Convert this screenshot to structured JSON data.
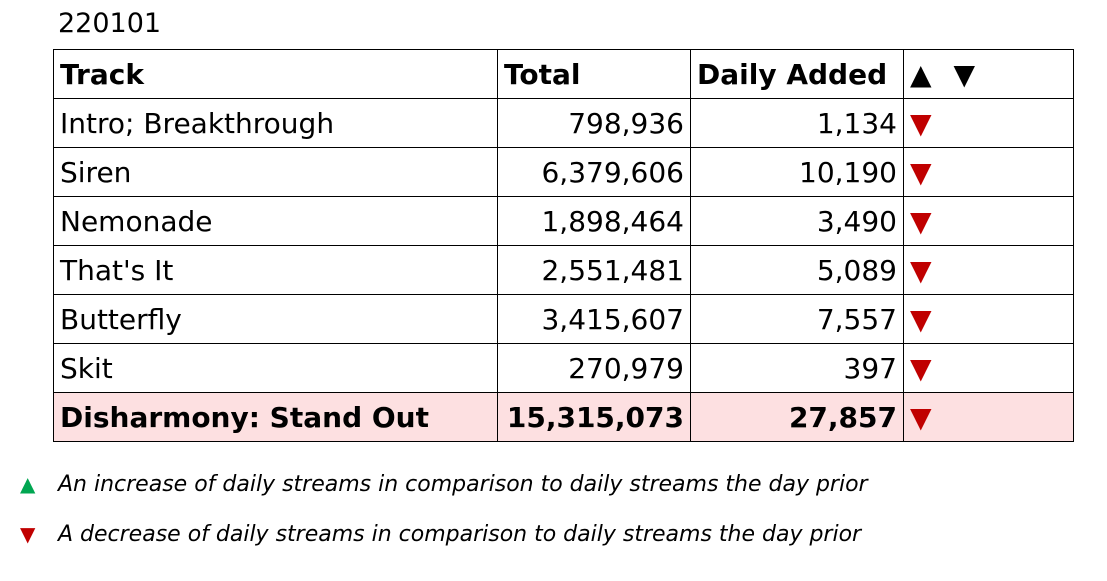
{
  "date": "220101",
  "headers": {
    "track": "Track",
    "total": "Total",
    "daily": "Daily Added",
    "up": "▲",
    "down": "▼"
  },
  "rows": [
    {
      "track": "Intro; Breakthrough",
      "total": "798,936",
      "daily": "1,134",
      "trend": "▼"
    },
    {
      "track": "Siren",
      "total": "6,379,606",
      "daily": "10,190",
      "trend": "▼"
    },
    {
      "track": "Nemonade",
      "total": "1,898,464",
      "daily": "3,490",
      "trend": "▼"
    },
    {
      "track": "That's It",
      "total": "2,551,481",
      "daily": "5,089",
      "trend": "▼"
    },
    {
      "track": "Butterfly",
      "total": "3,415,607",
      "daily": "7,557",
      "trend": "▼"
    },
    {
      "track": "Skit",
      "total": "270,979",
      "daily": "397",
      "trend": "▼"
    }
  ],
  "total_row": {
    "track": "Disharmony: Stand Out",
    "total": "15,315,073",
    "daily": "27,857",
    "trend": "▼"
  },
  "legend": {
    "up_symbol": "▲",
    "up_text": "An increase of daily streams in comparison to daily streams the day prior",
    "down_symbol": "▼",
    "down_text": "A decrease of daily streams in comparison to daily streams the day prior"
  },
  "colors": {
    "up": "#00a651",
    "down": "#c00000",
    "total_row_bg": "#fde0e1"
  }
}
